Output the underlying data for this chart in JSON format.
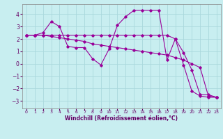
{
  "xlabel": "Windchill (Refroidissement éolien,°C)",
  "background_color": "#c8eef0",
  "grid_color": "#aad8dc",
  "line_color": "#990099",
  "xlim": [
    -0.5,
    23.5
  ],
  "ylim": [
    -3.6,
    4.8
  ],
  "xticks": [
    0,
    1,
    2,
    3,
    4,
    5,
    6,
    7,
    8,
    9,
    10,
    11,
    12,
    13,
    14,
    15,
    16,
    17,
    18,
    19,
    20,
    21,
    22,
    23
  ],
  "yticks": [
    -3,
    -2,
    -1,
    0,
    1,
    2,
    3,
    4
  ],
  "series": [
    [
      2.3,
      2.3,
      2.5,
      3.4,
      3.0,
      1.4,
      1.3,
      1.3,
      0.4,
      -0.1,
      1.2,
      3.1,
      3.8,
      4.3,
      4.3,
      4.3,
      4.3,
      0.3,
      2.0,
      -0.1,
      -2.2,
      -2.6,
      -2.7,
      -2.7
    ],
    [
      2.3,
      2.3,
      2.3,
      2.3,
      2.3,
      2.3,
      2.3,
      2.3,
      2.3,
      2.3,
      2.3,
      2.3,
      2.3,
      2.3,
      2.3,
      2.3,
      2.3,
      2.3,
      2.0,
      0.9,
      -0.5,
      -2.5,
      -2.5,
      -2.7
    ],
    [
      2.3,
      2.3,
      2.3,
      2.2,
      2.1,
      2.0,
      1.9,
      1.8,
      1.6,
      1.5,
      1.4,
      1.3,
      1.2,
      1.1,
      1.0,
      0.9,
      0.8,
      0.7,
      0.5,
      0.3,
      0.0,
      -0.3,
      -2.6,
      -2.7
    ]
  ]
}
